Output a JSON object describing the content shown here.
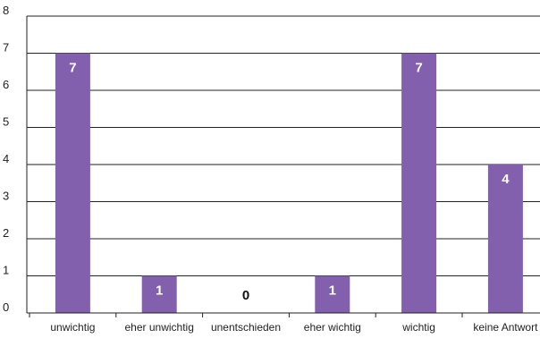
{
  "chart_data": {
    "type": "bar",
    "categories": [
      "unwichtig",
      "eher unwichtig",
      "unentschieden",
      "eher wichtig",
      "wichtig",
      "keine Antwort"
    ],
    "values": [
      7,
      1,
      0,
      1,
      7,
      4
    ],
    "data_labels": [
      "7",
      "1",
      "0",
      "1",
      "7",
      "4"
    ],
    "y_ticks": [
      "0",
      "1",
      "2",
      "3",
      "4",
      "5",
      "6",
      "7",
      "8"
    ],
    "ylim": [
      0,
      8
    ],
    "title": "",
    "xlabel": "",
    "ylabel": "",
    "grid": true,
    "legend": "none",
    "colors": {
      "bar": "#8360AE",
      "label_on_bar": "#ffffff",
      "label_zero": "#111111",
      "grid": "#222222",
      "axis": "#222222"
    }
  }
}
